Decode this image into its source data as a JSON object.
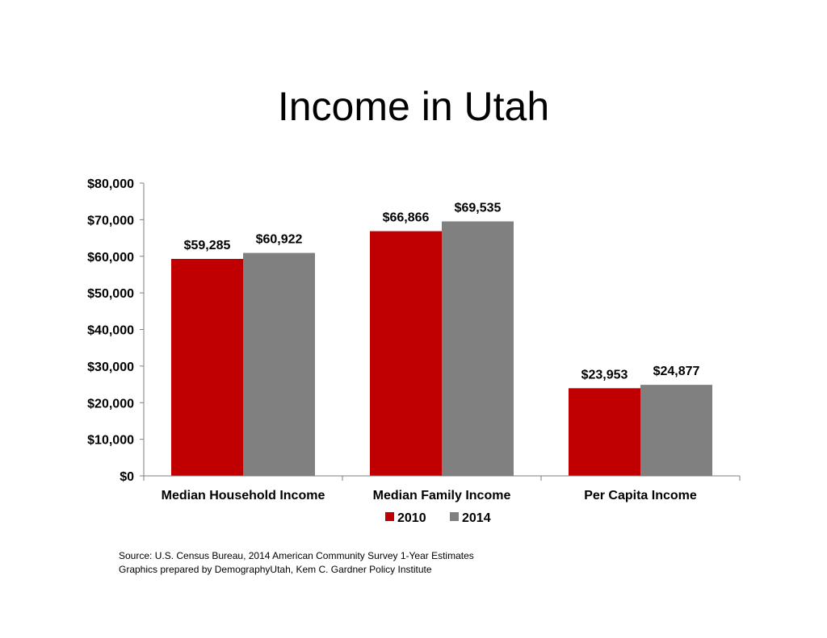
{
  "title": "Income in Utah",
  "chart_data": {
    "type": "bar",
    "title": "Income in Utah",
    "categories": [
      "Median Household Income",
      "Median Family Income",
      "Per Capita Income"
    ],
    "series": [
      {
        "name": "2010",
        "color": "#c00000",
        "values": [
          59285,
          66866,
          23953
        ],
        "labels": [
          "$59,285",
          "$66,866",
          "$23,953"
        ]
      },
      {
        "name": "2014",
        "color": "#808080",
        "values": [
          60922,
          69535,
          24877
        ],
        "labels": [
          "$60,922",
          "$69,535",
          "$24,877"
        ]
      }
    ],
    "ylim": [
      0,
      80000
    ],
    "yticks": [
      0,
      10000,
      20000,
      30000,
      40000,
      50000,
      60000,
      70000,
      80000
    ],
    "ytick_labels": [
      "$0",
      "$10,000",
      "$20,000",
      "$30,000",
      "$40,000",
      "$50,000",
      "$60,000",
      "$70,000",
      "$80,000"
    ],
    "xlabel": "",
    "ylabel": "",
    "grid": false,
    "legend_position": "bottom"
  },
  "source": {
    "line1": "Source: U.S. Census Bureau, 2014 American Community Survey 1-Year Estimates",
    "line2": "Graphics prepared by DemographyUtah, Kem C. Gardner Policy Institute"
  }
}
